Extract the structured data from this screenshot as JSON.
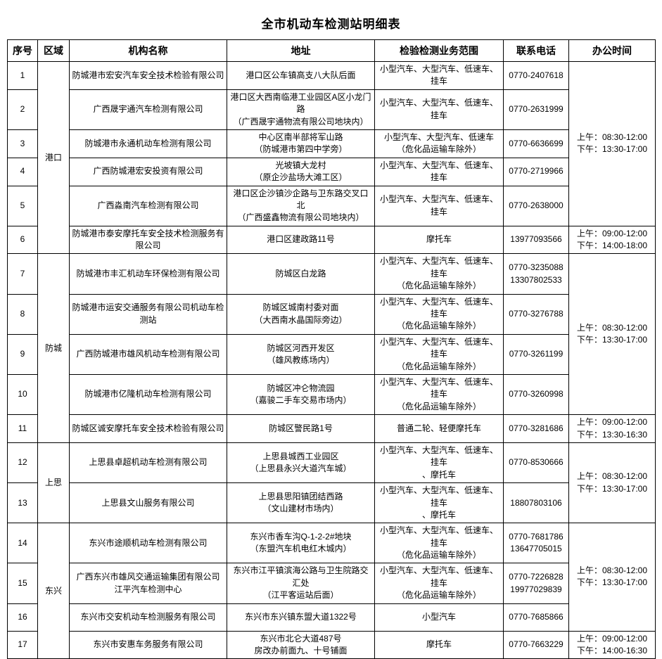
{
  "title": "全市机动车检测站明细表",
  "columns": [
    "序号",
    "区域",
    "机构名称",
    "地址",
    "检验检测业务范围",
    "联系电话",
    "办公时间"
  ],
  "table": {
    "rows": [
      {
        "no": "1",
        "region": {
          "label": "港口",
          "span": 6
        },
        "name": "防城港市宏安汽车安全技术检验有限公司",
        "address": "港口区公车镇高支八大队后面",
        "scope": "小型汽车、大型汽车、低速车、挂车",
        "phone": "0770-2407618",
        "hours": {
          "text": "上午：08:30-12:00\n下午：13:30-17:00",
          "span": 5
        }
      },
      {
        "no": "2",
        "name": "广西晟宇通汽车检测有限公司",
        "address": "港口区大西南临港工业园区A区小龙门路\n（广西晟宇通物流有限公司地块内）",
        "scope": "小型汽车、大型汽车、低速车、挂车",
        "phone": "0770-2631999"
      },
      {
        "no": "3",
        "name": "防城港市永通机动车检测有限公司",
        "address": "中心区南半部将军山路\n（防城港市第四中学旁）",
        "scope": "小型汽车、大型汽车、低速车\n（危化品运输车除外）",
        "phone": "0770-6636699"
      },
      {
        "no": "4",
        "name": "广西防城港宏安投资有限公司",
        "address": "光坡镇大龙村\n（原企沙盐场大滩工区）",
        "scope": "小型汽车、大型汽车、低速车、挂车",
        "phone": "0770-2719966"
      },
      {
        "no": "5",
        "name": "广西淼南汽车检测有限公司",
        "address": "港口区企沙镇沙企路与卫东路交叉口北\n（广西盛鑫物流有限公司地块内）",
        "scope": "小型汽车、大型汽车、低速车、挂车",
        "phone": "0770-2638000"
      },
      {
        "no": "6",
        "name": "防城港市泰安摩托车安全技术检测服务有限公司",
        "address": "港口区建政路11号",
        "scope": "摩托车",
        "phone": "13977093566",
        "hours": {
          "text": "上午：09:00-12:00\n下午：14:00-18:00",
          "span": 1
        }
      },
      {
        "no": "7",
        "region": {
          "label": "防城",
          "span": 5
        },
        "name": "防城港市丰汇机动车环保检测有限公司",
        "address": "防城区白龙路",
        "scope": "小型汽车、大型汽车、低速车、挂车\n（危化品运输车除外）",
        "phone": "0770-3235088\n13307802533",
        "hours": {
          "text": "上午：08:30-12:00\n下午：13:30-17:00",
          "span": 4
        }
      },
      {
        "no": "8",
        "name": "防城港市运安交通服务有限公司机动车检测站",
        "address": "防城区城南村委对面\n（大西南水晶国际旁边）",
        "scope": "小型汽车、大型汽车、低速车、挂车\n（危化品运输车除外）",
        "phone": "0770-3276788"
      },
      {
        "no": "9",
        "name": "广西防城港市雄风机动车检测有限公司",
        "address": "防城区河西开发区\n（雄风教练场内）",
        "scope": "小型汽车、大型汽车、低速车、挂车\n（危化品运输车除外）",
        "phone": "0770-3261199"
      },
      {
        "no": "10",
        "name": "防城港市亿隆机动车检测有限公司",
        "address": "防城区冲仑物流园\n（嘉骏二手车交易市场内）",
        "scope": "小型汽车、大型汽车、低速车、挂车\n（危化品运输车除外）",
        "phone": "0770-3260998"
      },
      {
        "no": "11",
        "name": "防城区诚安摩托车安全技术检验有限公司",
        "address": "防城区警民路1号",
        "scope": "普通二轮、轻便摩托车",
        "phone": "0770-3281686",
        "hours": {
          "text": "上午：09:00-12:00\n下午：13:30-16:30",
          "span": 1
        }
      },
      {
        "no": "12",
        "region": {
          "label": "上思",
          "span": 2
        },
        "name": "上思县卓超机动车检测有限公司",
        "address": "上思县城西工业园区\n（上思县永兴大道汽车城）",
        "scope": "小型汽车、大型汽车、低速车、挂车\n、摩托车",
        "phone": "0770-8530666",
        "hours": {
          "text": "上午：08:30-12:00\n下午：13:30-17:00",
          "span": 2
        }
      },
      {
        "no": "13",
        "name": "上思县文山服务有限公司",
        "address": "上思县思阳镇团结西路\n（文山建材市场内）",
        "scope": "小型汽车、大型汽车、低速车、挂车\n、摩托车",
        "phone": "18807803106"
      },
      {
        "no": "14",
        "region": {
          "label": "东兴",
          "span": 4
        },
        "name": "东兴市途顺机动车检测有限公司",
        "address": "东兴市香车沟Q-1-2-2#地块\n（东盟汽车机电红木城内）",
        "scope": "小型汽车、大型汽车、低速车、挂车\n（危化品运输车除外）",
        "phone": "0770-7681786\n13647705015",
        "hours": {
          "text": "上午：08:30-12:00\n下午：13:30-17:00",
          "span": 3
        }
      },
      {
        "no": "15",
        "name": "广西东兴市雄风交通运输集团有限公司\n江平汽车检测中心",
        "address": "东兴市江平镇滨海公路与卫生院路交汇处\n（江平客运站后面）",
        "scope": "小型汽车、大型汽车、低速车、挂车\n（危化品运输车除外）",
        "phone": "0770-7226828\n19977029839"
      },
      {
        "no": "16",
        "name": "东兴市交安机动车检测服务有限公司",
        "address": "东兴市东兴镇东盟大道1322号",
        "scope": "小型汽车",
        "phone": "0770-7685866"
      },
      {
        "no": "17",
        "name": "东兴市安惠车务服务有限公司",
        "address": "东兴市北仑大道487号\n房改办前面九、十号铺面",
        "scope": "摩托车",
        "phone": "0770-7663229",
        "hours": {
          "text": "上午：09:00-12:00\n下午：14:00-16:30",
          "span": 1
        }
      }
    ]
  }
}
